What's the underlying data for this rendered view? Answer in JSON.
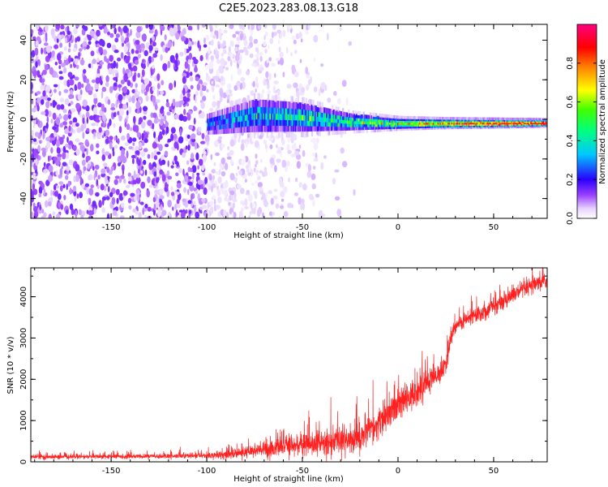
{
  "figure": {
    "title": "C2E5.2023.283.08.13.G18"
  },
  "chart_data": [
    {
      "type": "heatmap",
      "xlabel": "Height of straight line (km)",
      "ylabel": "Frequency (Hz)",
      "xlim": [
        -192,
        78
      ],
      "ylim": [
        -50,
        48
      ],
      "xticks": [
        -150,
        -100,
        -50,
        0,
        50
      ],
      "yticks": [
        -40,
        -20,
        0,
        20,
        40
      ],
      "x_tick_labels": [
        "-150",
        "-100",
        "-50",
        "0",
        "50"
      ],
      "y_tick_labels": [
        "-40",
        "-20",
        "0",
        "20",
        "40"
      ],
      "colorbar": {
        "label": "Normalized spectral amplitude",
        "range": [
          0,
          1
        ],
        "ticks": [
          0,
          0.2,
          0.4,
          0.6,
          0.8
        ],
        "tick_labels": [
          "0.0",
          "0.2",
          "0.4",
          "0.6",
          "0.8"
        ]
      },
      "signal_band": {
        "x_start": -100,
        "x_end": 78,
        "center_freq": [
          [
            -100,
            -2
          ],
          [
            -75,
            3
          ],
          [
            -50,
            2
          ],
          [
            -25,
            -1
          ],
          [
            0,
            -2
          ],
          [
            25,
            -2
          ],
          [
            50,
            -2
          ],
          [
            78,
            -2
          ]
        ],
        "half_width": [
          [
            -100,
            5
          ],
          [
            -75,
            8
          ],
          [
            -50,
            7
          ],
          [
            -25,
            4
          ],
          [
            0,
            2.5
          ],
          [
            25,
            2
          ],
          [
            50,
            1.8
          ],
          [
            78,
            1.5
          ]
        ],
        "peak_amplitude": [
          [
            -100,
            0.25
          ],
          [
            -75,
            0.35
          ],
          [
            -50,
            0.4
          ],
          [
            -25,
            0.45
          ],
          [
            0,
            0.6
          ],
          [
            25,
            0.8
          ],
          [
            50,
            0.9
          ],
          [
            78,
            0.95
          ]
        ]
      },
      "noise": {
        "x_start": -192,
        "x_end": -20,
        "amplitude": 0.12
      },
      "grid": false
    },
    {
      "type": "line",
      "xlabel": "Height of straight line (km)",
      "ylabel": "SNR (10 * v/v)",
      "xlim": [
        -192,
        78
      ],
      "ylim": [
        0,
        4700
      ],
      "xticks": [
        -150,
        -100,
        -50,
        0,
        50
      ],
      "yticks": [
        0,
        1000,
        2000,
        3000,
        4000
      ],
      "x_tick_labels": [
        "-150",
        "-100",
        "-50",
        "0",
        "50"
      ],
      "y_tick_labels": [
        "0",
        "1000",
        "2000",
        "3000",
        "4000"
      ],
      "color": "#ff2020",
      "series": [
        {
          "x": [
            -192,
            -180,
            -160,
            -140,
            -120,
            -100,
            -90,
            -80,
            -70,
            -60,
            -50,
            -40,
            -30,
            -20,
            -10,
            0,
            10,
            20,
            25,
            27,
            30,
            40,
            50,
            60,
            70,
            78
          ],
          "mean": [
            120,
            120,
            125,
            130,
            135,
            150,
            180,
            220,
            300,
            380,
            420,
            450,
            500,
            600,
            900,
            1350,
            1700,
            2100,
            2300,
            2900,
            3300,
            3550,
            3750,
            4050,
            4250,
            4400
          ],
          "spread": [
            80,
            80,
            80,
            80,
            80,
            100,
            150,
            200,
            300,
            350,
            400,
            450,
            500,
            550,
            500,
            500,
            550,
            400,
            350,
            300,
            250,
            300,
            300,
            300,
            300,
            250
          ]
        }
      ],
      "grid": false
    }
  ]
}
